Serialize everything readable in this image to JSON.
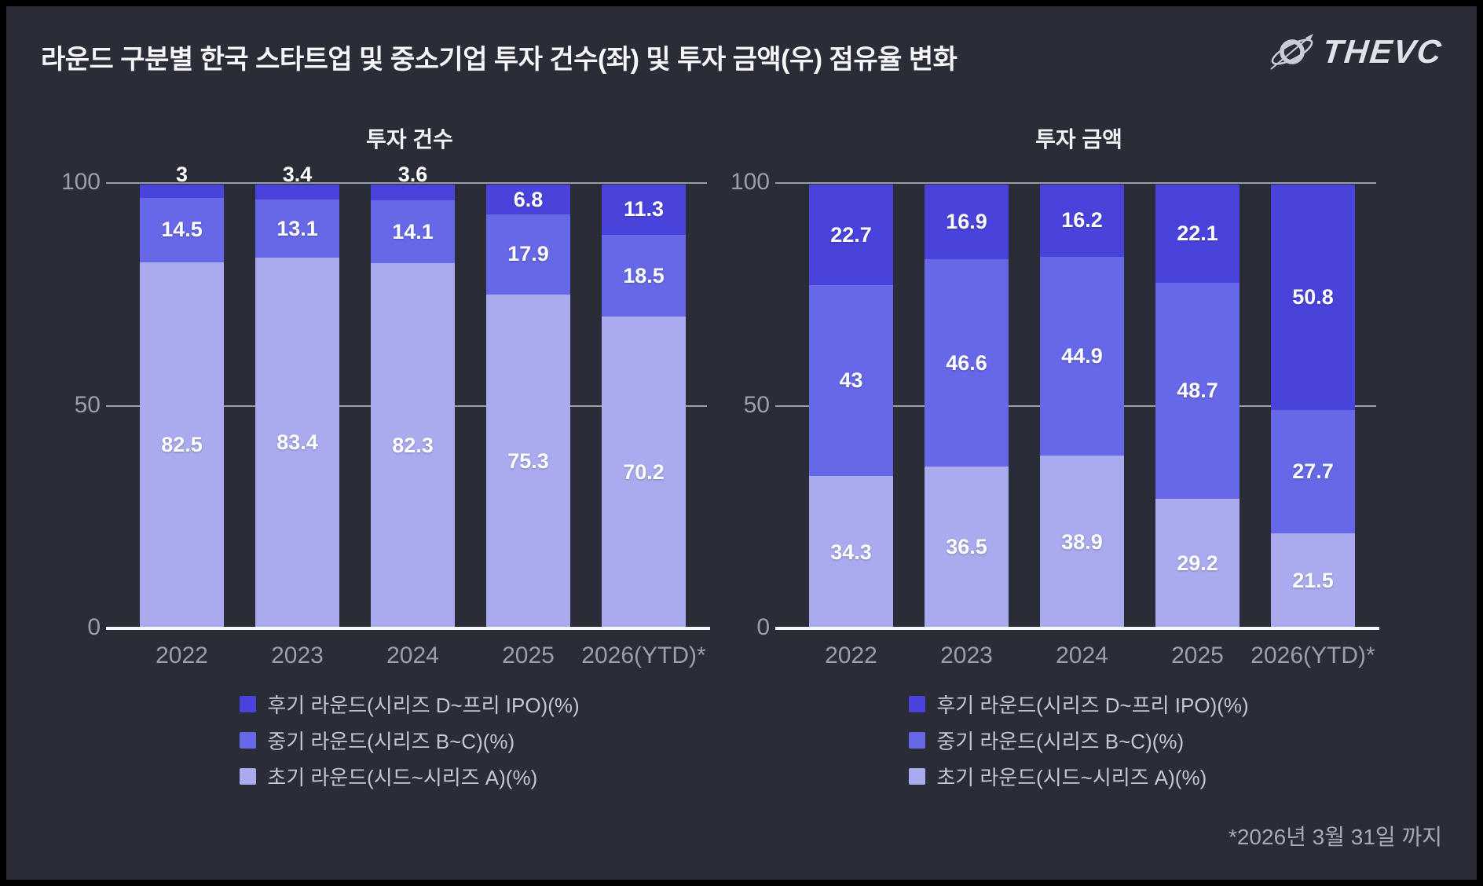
{
  "title": "라운드 구분별 한국 스타트업 및 중소기업 투자 건수(좌) 및 투자 금액(우) 점유율 변화",
  "logo": {
    "text": "THEVC",
    "icon": "planet-orbit-icon"
  },
  "footnote": "*2026년 3월 31일 까지",
  "colors": {
    "background": "#2a2d37",
    "late_round": "#4a43db",
    "mid_round": "#6668e7",
    "early_round": "#a9abee",
    "gridline": "#9a9da3",
    "zero_axis": "#f8f9fa",
    "tick_text": "#9b9fa7",
    "value_text": "#ffffff"
  },
  "legend": [
    {
      "key": "late-round",
      "label": "후기 라운드(시리즈 D~프리 IPO)(%)",
      "color": "#4a43db"
    },
    {
      "key": "mid-round",
      "label": "중기 라운드(시리즈 B~C)(%)",
      "color": "#6668e7"
    },
    {
      "key": "early-round",
      "label": "초기 라운드(시드~시리즈 A)(%)",
      "color": "#a9abee"
    }
  ],
  "chart_data": [
    {
      "type": "bar",
      "stacked": true,
      "title": "투자 건수",
      "categories": [
        "2022",
        "2023",
        "2024",
        "2025",
        "2026(YTD)*"
      ],
      "series": [
        {
          "name": "후기 라운드(시리즈 D~프리 IPO)(%)",
          "key": "late-round",
          "color": "#4a43db",
          "values": [
            3,
            3.4,
            3.6,
            6.8,
            11.3
          ]
        },
        {
          "name": "중기 라운드(시리즈 B~C)(%)",
          "key": "mid-round",
          "color": "#6668e7",
          "values": [
            14.5,
            13.1,
            14.1,
            17.9,
            18.5
          ]
        },
        {
          "name": "초기 라운드(시드~시리즈 A)(%)",
          "key": "early-round",
          "color": "#a9abee",
          "values": [
            82.5,
            83.4,
            82.3,
            75.3,
            70.2
          ]
        }
      ],
      "ylim": [
        0,
        100
      ],
      "yticks": [
        100,
        50,
        0
      ],
      "grid": true,
      "legend_position": "bottom"
    },
    {
      "type": "bar",
      "stacked": true,
      "title": "투자 금액",
      "categories": [
        "2022",
        "2023",
        "2024",
        "2025",
        "2026(YTD)*"
      ],
      "series": [
        {
          "name": "후기 라운드(시리즈 D~프리 IPO)(%)",
          "key": "late-round",
          "color": "#4a43db",
          "values": [
            22.7,
            16.9,
            16.2,
            22.1,
            50.8
          ]
        },
        {
          "name": "중기 라운드(시리즈 B~C)(%)",
          "key": "mid-round",
          "color": "#6668e7",
          "values": [
            43,
            46.6,
            44.9,
            48.7,
            27.7
          ]
        },
        {
          "name": "초기 라운드(시드~시리즈 A)(%)",
          "key": "early-round",
          "color": "#a9abee",
          "values": [
            34.3,
            36.5,
            38.9,
            29.2,
            21.5
          ]
        }
      ],
      "ylim": [
        0,
        100
      ],
      "yticks": [
        100,
        50,
        0
      ],
      "grid": true,
      "legend_position": "bottom"
    }
  ]
}
